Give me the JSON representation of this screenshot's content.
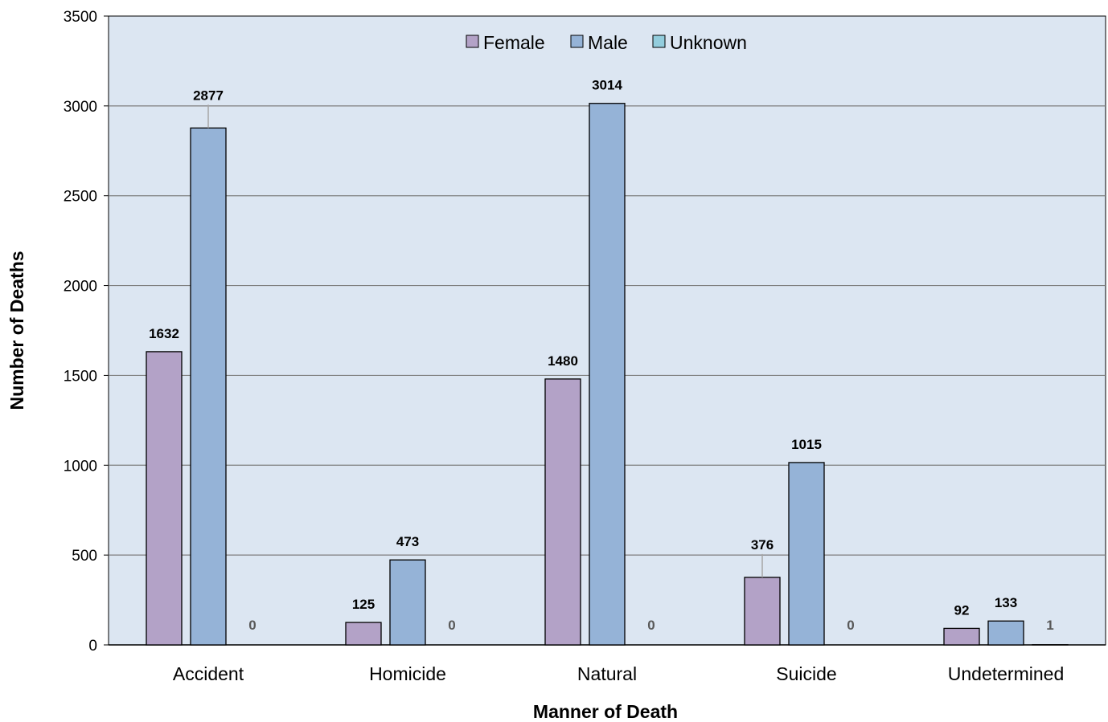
{
  "chart_data": {
    "type": "bar",
    "title": "",
    "xlabel": "Manner of Death",
    "ylabel": "Number of Deaths",
    "ylim": [
      0,
      3500
    ],
    "yticks": [
      0,
      500,
      1000,
      1500,
      2000,
      2500,
      3000,
      3500
    ],
    "grid": true,
    "legend_position": "top-center",
    "categories": [
      "Accident",
      "Homicide",
      "Natural",
      "Suicide",
      "Undetermined"
    ],
    "series": [
      {
        "name": "Female",
        "color": "#B3A2C7",
        "values": [
          1632,
          125,
          1480,
          376,
          92
        ]
      },
      {
        "name": "Male",
        "color": "#95B3D7",
        "values": [
          2877,
          473,
          3014,
          1015,
          133
        ]
      },
      {
        "name": "Unknown",
        "color": "#93CDDD",
        "values": [
          0,
          0,
          0,
          0,
          1
        ]
      }
    ],
    "plot_background": "#DCE6F2"
  }
}
